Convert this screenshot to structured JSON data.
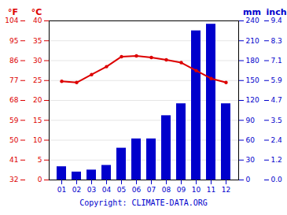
{
  "chart_data": {
    "type": "bar",
    "categories": [
      "01",
      "02",
      "03",
      "04",
      "05",
      "06",
      "07",
      "08",
      "09",
      "10",
      "11",
      "12"
    ],
    "series": [
      {
        "type": "bar",
        "axis": "y2",
        "color": "#0000cc",
        "values": [
          20,
          12,
          15,
          22,
          48,
          62,
          62,
          97,
          115,
          225,
          235,
          115
        ]
      },
      {
        "type": "line",
        "axis": "y",
        "color": "#dd0000",
        "marker": "circle",
        "values": [
          24.8,
          24.5,
          26.5,
          28.5,
          31.0,
          31.2,
          30.8,
          30.2,
          29.5,
          27.5,
          25.5,
          24.5
        ]
      }
    ],
    "ylabel": "°C",
    "ylim": [
      0,
      40
    ],
    "yticks": [
      0,
      5,
      10,
      15,
      20,
      25,
      30,
      35,
      40
    ],
    "y2label": "mm",
    "y2lim": [
      0,
      240
    ],
    "y2ticks": [
      0,
      30,
      60,
      90,
      120,
      150,
      180,
      210,
      240
    ],
    "y3label": "°F",
    "y3ticks": [
      {
        "value": 0,
        "label": "32"
      },
      {
        "value": 5,
        "label": "41"
      },
      {
        "value": 10,
        "label": "50"
      },
      {
        "value": 15,
        "label": "59"
      },
      {
        "value": 20,
        "label": "68"
      },
      {
        "value": 25,
        "label": "77"
      },
      {
        "value": 30,
        "label": "86"
      },
      {
        "value": 35,
        "label": "95"
      },
      {
        "value": 40,
        "label": "104"
      }
    ],
    "y4label": "inch",
    "y4ticks": [
      {
        "value": 0,
        "label": "0.0"
      },
      {
        "value": 30,
        "label": "1.2"
      },
      {
        "value": 60,
        "label": "2.4"
      },
      {
        "value": 90,
        "label": "3.5"
      },
      {
        "value": 120,
        "label": "4.7"
      },
      {
        "value": 150,
        "label": "5.9"
      },
      {
        "value": 180,
        "label": "7.1"
      },
      {
        "value": 210,
        "label": "8.3"
      },
      {
        "value": 240,
        "label": "9.4"
      }
    ],
    "grid": true,
    "caption": "Copyright: CLIMATE-DATA.ORG"
  }
}
